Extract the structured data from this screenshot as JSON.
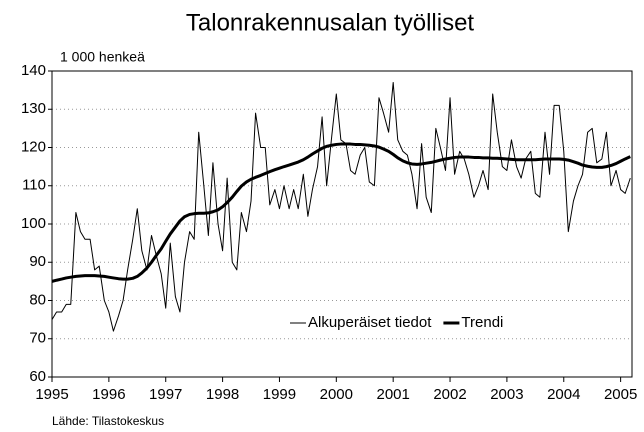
{
  "chart_data": {
    "type": "line",
    "title": "Talonrakennusalan työlliset",
    "y_label": "1 000 henkeä",
    "source": "Lähde: Tilastokeskus",
    "x": [
      1995.0,
      1995.08,
      1995.17,
      1995.25,
      1995.33,
      1995.42,
      1995.5,
      1995.58,
      1995.67,
      1995.75,
      1995.83,
      1995.92,
      1996.0,
      1996.08,
      1996.17,
      1996.25,
      1996.33,
      1996.42,
      1996.5,
      1996.58,
      1996.67,
      1996.75,
      1996.83,
      1996.92,
      1997.0,
      1997.08,
      1997.17,
      1997.25,
      1997.33,
      1997.42,
      1997.5,
      1997.58,
      1997.67,
      1997.75,
      1997.83,
      1997.92,
      1998.0,
      1998.08,
      1998.17,
      1998.25,
      1998.33,
      1998.42,
      1998.5,
      1998.58,
      1998.67,
      1998.75,
      1998.83,
      1998.92,
      1999.0,
      1999.08,
      1999.17,
      1999.25,
      1999.33,
      1999.42,
      1999.5,
      1999.58,
      1999.67,
      1999.75,
      1999.83,
      1999.92,
      2000.0,
      2000.08,
      2000.17,
      2000.25,
      2000.33,
      2000.42,
      2000.5,
      2000.58,
      2000.67,
      2000.75,
      2000.83,
      2000.92,
      2001.0,
      2001.08,
      2001.17,
      2001.25,
      2001.33,
      2001.42,
      2001.5,
      2001.58,
      2001.67,
      2001.75,
      2001.83,
      2001.92,
      2002.0,
      2002.08,
      2002.17,
      2002.25,
      2002.33,
      2002.42,
      2002.5,
      2002.58,
      2002.67,
      2002.75,
      2002.83,
      2002.92,
      2003.0,
      2003.08,
      2003.17,
      2003.25,
      2003.33,
      2003.42,
      2003.5,
      2003.58,
      2003.67,
      2003.75,
      2003.83,
      2003.92,
      2004.0,
      2004.08,
      2004.17,
      2004.25,
      2004.33,
      2004.42,
      2004.5,
      2004.58,
      2004.67,
      2004.75,
      2004.83,
      2004.92,
      2005.0,
      2005.08,
      2005.17
    ],
    "series": [
      {
        "name": "Alkuperäiset tiedot",
        "color": "#000000",
        "width": 1,
        "values": [
          75,
          77,
          77,
          79,
          79,
          103,
          98,
          96,
          96,
          88,
          89,
          80,
          77,
          72,
          76,
          80,
          88,
          96,
          104,
          93,
          88,
          97,
          92,
          87,
          78,
          95,
          81,
          77,
          90,
          98,
          96,
          124,
          110,
          97,
          116,
          100,
          93,
          112,
          90,
          88,
          103,
          98,
          106,
          129,
          120,
          120,
          105,
          109,
          104,
          110,
          104,
          109,
          104,
          113,
          102,
          109,
          115,
          128,
          110,
          123,
          134,
          122,
          121,
          114,
          113,
          118,
          120,
          111,
          110,
          133,
          129,
          124,
          137,
          122,
          119,
          118,
          113,
          104,
          121,
          107,
          103,
          125,
          120,
          114,
          133,
          113,
          119,
          117,
          113,
          107,
          110,
          114,
          109,
          134,
          124,
          115,
          114,
          122,
          115,
          112,
          117,
          119,
          108,
          107,
          124,
          113,
          131,
          131,
          119,
          98,
          106,
          110,
          113,
          124,
          125,
          116,
          117,
          124,
          110,
          114,
          109,
          108,
          112
        ]
      },
      {
        "name": "Trendi",
        "color": "#000000",
        "width": 3,
        "values": [
          85,
          85.3,
          85.6,
          85.9,
          86.1,
          86.3,
          86.4,
          86.5,
          86.5,
          86.5,
          86.4,
          86.3,
          86.1,
          85.9,
          85.7,
          85.6,
          85.6,
          85.8,
          86.3,
          87.2,
          88.5,
          90,
          91.7,
          93.5,
          95.5,
          97.4,
          99.2,
          100.8,
          101.9,
          102.5,
          102.7,
          102.8,
          102.8,
          102.9,
          103.2,
          103.7,
          104.5,
          105.6,
          107,
          108.5,
          109.9,
          111,
          111.7,
          112.2,
          112.7,
          113.2,
          113.7,
          114.2,
          114.6,
          115,
          115.4,
          115.8,
          116.2,
          116.8,
          117.5,
          118.3,
          119.1,
          119.8,
          120.3,
          120.6,
          120.8,
          120.9,
          120.9,
          120.9,
          120.8,
          120.8,
          120.7,
          120.6,
          120.4,
          120.1,
          119.6,
          119,
          118.2,
          117.3,
          116.5,
          116,
          115.7,
          115.6,
          115.7,
          115.9,
          116.1,
          116.4,
          116.7,
          117,
          117.2,
          117.4,
          117.5,
          117.5,
          117.5,
          117.4,
          117.4,
          117.3,
          117.3,
          117.2,
          117.2,
          117.1,
          117,
          116.9,
          116.8,
          116.8,
          116.8,
          116.8,
          116.8,
          116.9,
          117,
          117,
          117,
          117,
          116.9,
          116.7,
          116.3,
          115.9,
          115.4,
          115.1,
          114.9,
          114.8,
          114.8,
          115,
          115.3,
          115.8,
          116.4,
          117,
          117.6
        ]
      }
    ],
    "xlim": [
      1995,
      2005.2
    ],
    "xticks": [
      1995,
      1996,
      1997,
      1998,
      1999,
      2000,
      2001,
      2002,
      2003,
      2004,
      2005
    ],
    "ylim": [
      60,
      140
    ],
    "yticks": [
      60,
      70,
      80,
      90,
      100,
      110,
      120,
      130,
      140
    ],
    "grid": true,
    "legend": "lower right"
  }
}
